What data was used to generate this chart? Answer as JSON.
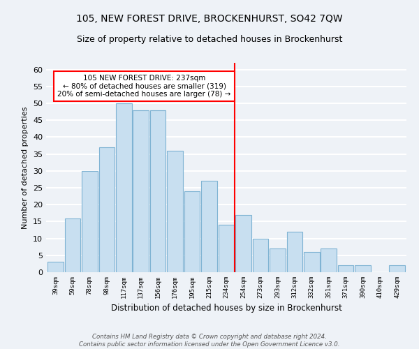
{
  "title": "105, NEW FOREST DRIVE, BROCKENHURST, SO42 7QW",
  "subtitle": "Size of property relative to detached houses in Brockenhurst",
  "xlabel": "Distribution of detached houses by size in Brockenhurst",
  "ylabel": "Number of detached properties",
  "bar_labels": [
    "39sqm",
    "59sqm",
    "78sqm",
    "98sqm",
    "117sqm",
    "137sqm",
    "156sqm",
    "176sqm",
    "195sqm",
    "215sqm",
    "234sqm",
    "254sqm",
    "273sqm",
    "293sqm",
    "312sqm",
    "332sqm",
    "351sqm",
    "371sqm",
    "390sqm",
    "410sqm",
    "429sqm"
  ],
  "bar_values": [
    3,
    16,
    30,
    37,
    50,
    48,
    48,
    36,
    24,
    27,
    14,
    17,
    10,
    7,
    12,
    6,
    7,
    2,
    2,
    0,
    2
  ],
  "bar_color": "#c8dff0",
  "bar_edge_color": "#7fb3d3",
  "vline_x_index": 10.5,
  "vline_color": "red",
  "annotation_line1": "105 NEW FOREST DRIVE: 237sqm",
  "annotation_line2": "← 80% of detached houses are smaller (319)",
  "annotation_line3": "20% of semi-detached houses are larger (78) →",
  "annotation_box_color": "white",
  "annotation_box_edge_color": "red",
  "ylim": [
    0,
    62
  ],
  "yticks": [
    0,
    5,
    10,
    15,
    20,
    25,
    30,
    35,
    40,
    45,
    50,
    55,
    60
  ],
  "footer_line1": "Contains HM Land Registry data © Crown copyright and database right 2024.",
  "footer_line2": "Contains public sector information licensed under the Open Government Licence v3.0.",
  "bg_color": "#eef2f7",
  "grid_color": "white",
  "title_fontsize": 10,
  "subtitle_fontsize": 9
}
